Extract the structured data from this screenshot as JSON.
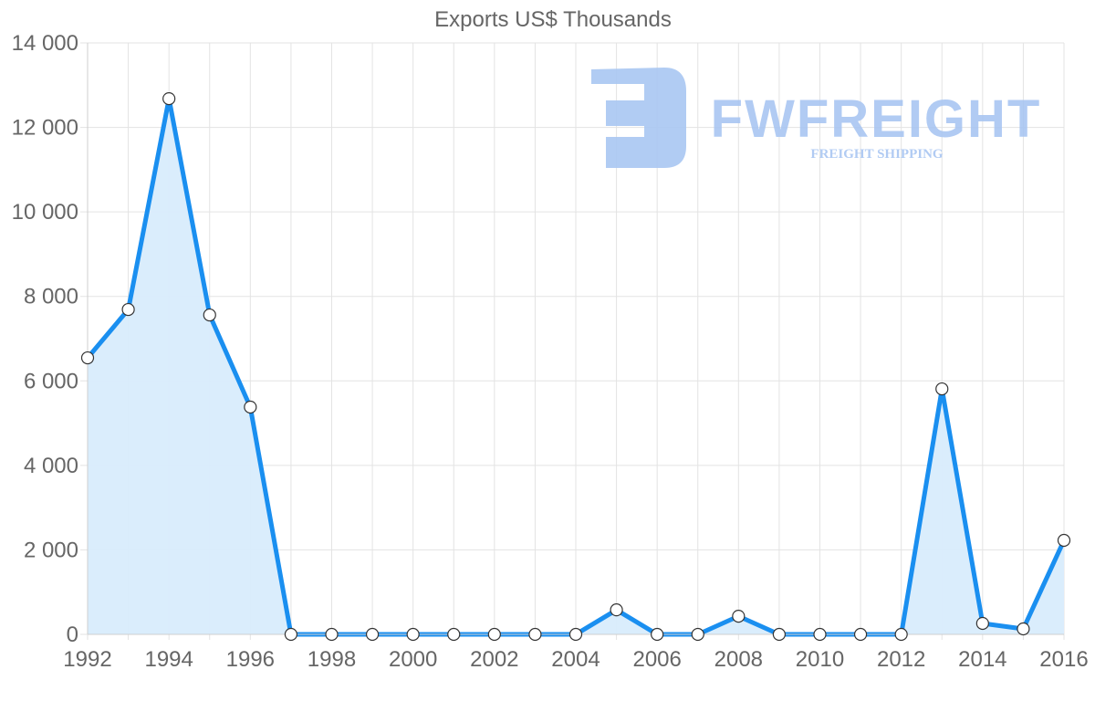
{
  "chart_data": {
    "type": "area",
    "title": "Exports US$ Thousands",
    "xlabel": "",
    "ylabel": "",
    "x": [
      1992,
      1993,
      1994,
      1995,
      1996,
      1997,
      1998,
      1999,
      2000,
      2001,
      2002,
      2003,
      2004,
      2005,
      2006,
      2007,
      2008,
      2009,
      2010,
      2011,
      2012,
      2013,
      2014,
      2015,
      2016
    ],
    "series": [
      {
        "name": "Exports US$ Thousands",
        "values": [
          6545,
          7690,
          12680,
          7560,
          5380,
          0,
          0,
          0,
          0,
          0,
          0,
          0,
          0,
          580,
          0,
          0,
          430,
          0,
          0,
          0,
          0,
          5810,
          260,
          130,
          2225
        ]
      }
    ],
    "xlim": [
      1992,
      2016
    ],
    "ylim": [
      0,
      14000
    ],
    "x_ticks": [
      "1992",
      "1994",
      "1996",
      "1998",
      "2000",
      "2002",
      "2004",
      "2006",
      "2008",
      "2010",
      "2012",
      "2014",
      "2016"
    ],
    "y_ticks": [
      "0",
      "2 000",
      "4 000",
      "6 000",
      "8 000",
      "10 000",
      "12 000",
      "14 000"
    ],
    "grid": true,
    "legend": "none",
    "colors": {
      "line": "#1a8ff0",
      "fill": "#d8ecfc",
      "point_fill": "#ffffff",
      "point_stroke": "#333333",
      "grid": "#e3e3e3",
      "tick_text": "#666666"
    }
  },
  "watermark": {
    "brand": "FWFREIGHT",
    "tagline": "FREIGHT SHIPPING",
    "color": "#a9c6f2"
  }
}
